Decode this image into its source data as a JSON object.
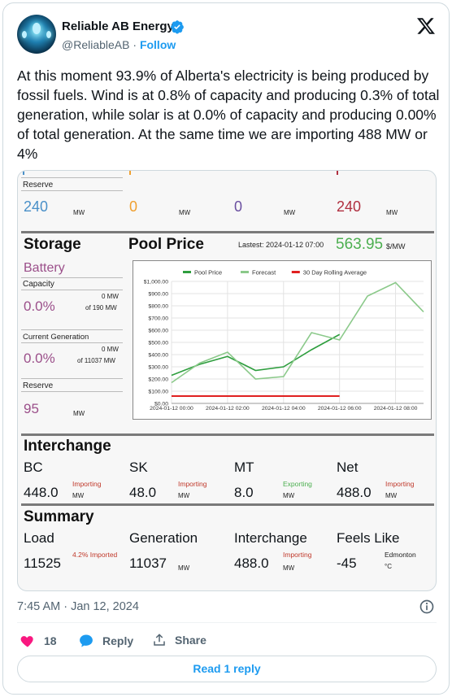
{
  "post": {
    "author_name": "Reliable AB Energy",
    "handle": "@ReliableAB",
    "follow_label": "Follow",
    "text": "At this moment 93.9% of Alberta's electricity is being produced by fossil fuels. Wind is at 0.8% of capacity and producing 0.3% of total generation, while solar is at 0.0% of capacity and producing 0.00% of total generation. At the same time we are importing 488 MW or 4%",
    "timestamp": "7:45 AM · Jan 12, 2024",
    "likes": "18",
    "reply_label": "Reply",
    "share_label": "Share",
    "read_replies_label": "Read 1 reply"
  },
  "dashboard": {
    "reserve_top": {
      "label": "Reserve",
      "values": [
        {
          "value": "240",
          "unit": "MW",
          "color": "#4a90c8"
        },
        {
          "value": "0",
          "unit": "MW",
          "color": "#f0a030"
        },
        {
          "value": "0",
          "unit": "MW",
          "color": "#6a4fa0"
        },
        {
          "value": "240",
          "unit": "MW",
          "color": "#b03040"
        }
      ]
    },
    "storage": {
      "title": "Storage",
      "battery_label": "Battery",
      "capacity_label": "Capacity",
      "capacity_pct": "0.0%",
      "capacity_mw": "0 MW",
      "capacity_of": "of 190 MW",
      "current_gen_label": "Current Generation",
      "current_gen_pct": "0.0%",
      "current_gen_mw": "0 MW",
      "current_gen_of": "of 11037 MW",
      "reserve_label": "Reserve",
      "reserve_value": "95",
      "reserve_unit": "MW"
    },
    "pool_price": {
      "title": "Pool Price",
      "lastest": "Lastest: 2024-01-12 07:00",
      "price": "563.95",
      "unit": "$/MW"
    },
    "interchange": {
      "title": "Interchange",
      "items": [
        {
          "name": "BC",
          "value": "448.0",
          "status": "Importing",
          "unit": "MW",
          "color": "#c0392b"
        },
        {
          "name": "SK",
          "value": "48.0",
          "status": "Importing",
          "unit": "MW",
          "color": "#c0392b"
        },
        {
          "name": "MT",
          "value": "8.0",
          "status": "Exporting",
          "unit": "MW",
          "color": "#4caf50"
        },
        {
          "name": "Net",
          "value": "488.0",
          "status": "Importing",
          "unit": "MW",
          "color": "#c0392b"
        }
      ]
    },
    "summary": {
      "title": "Summary",
      "items": [
        {
          "name": "Load",
          "value": "11525",
          "note": "4.2% Imported",
          "unit": ""
        },
        {
          "name": "Generation",
          "value": "11037",
          "note": "",
          "unit": "MW"
        },
        {
          "name": "Interchange",
          "value": "488.0",
          "note": "Importing",
          "unit": "MW"
        },
        {
          "name": "Feels Like",
          "value": "-45",
          "note": "Edmonton",
          "unit": "°C"
        }
      ]
    }
  },
  "chart_data": {
    "type": "line",
    "x": [
      "2024-01-12 00:00",
      "2024-01-12 01:00",
      "2024-01-12 02:00",
      "2024-01-12 03:00",
      "2024-01-12 04:00",
      "2024-01-12 05:00",
      "2024-01-12 06:00",
      "2024-01-12 07:00",
      "2024-01-12 08:00",
      "2024-01-12 09:00"
    ],
    "xticks": [
      "2024-01-12 00:00",
      "2024-01-12 02:00",
      "2024-01-12 04:00",
      "2024-01-12 06:00",
      "2024-01-12 08:00"
    ],
    "yticks": [
      "$0.00",
      "$100.00",
      "$200.00",
      "$300.00",
      "$400.00",
      "$500.00",
      "$600.00",
      "$700.00",
      "$800.00",
      "$900.00",
      "$1,000.00"
    ],
    "ylim": [
      0,
      1000
    ],
    "series": [
      {
        "name": "Pool Price",
        "color": "#2e9e3e",
        "values": [
          230,
          320,
          385,
          270,
          300,
          440,
          565,
          null,
          null,
          null
        ]
      },
      {
        "name": "Forecast",
        "color": "#8bc98a",
        "values": [
          170,
          330,
          420,
          200,
          220,
          580,
          520,
          880,
          990,
          750
        ]
      },
      {
        "name": "30 Day Rolling Average",
        "color": "#e02020",
        "values": [
          60,
          60,
          60,
          60,
          60,
          60,
          60,
          null,
          null,
          null
        ]
      }
    ],
    "legend": "top"
  }
}
